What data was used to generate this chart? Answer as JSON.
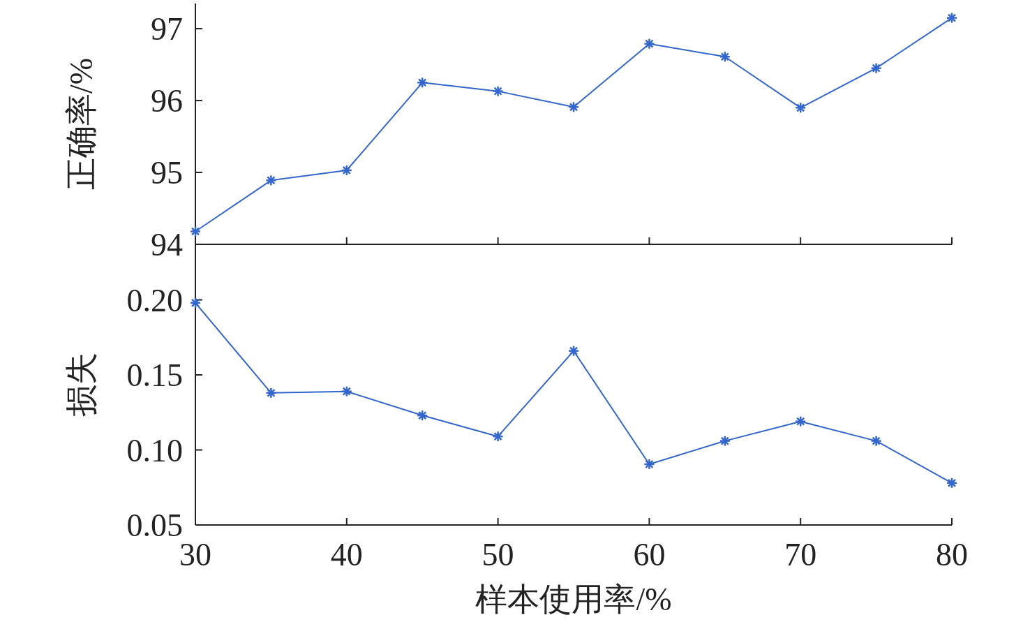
{
  "chart_data": [
    {
      "type": "line",
      "ylabel": "正确率/%",
      "x": [
        30,
        35,
        40,
        45,
        50,
        55,
        60,
        65,
        70,
        75,
        80
      ],
      "xlim": [
        30,
        80
      ],
      "xticks": [
        30,
        40,
        50,
        60,
        70,
        80
      ],
      "ylim": [
        94,
        97.35
      ],
      "yticks": [
        94,
        95,
        96,
        97
      ],
      "tick_labels": "y",
      "marker": "cross",
      "series": [
        {
          "color": "#3366cc",
          "values": [
            94.18,
            94.89,
            95.03,
            96.25,
            96.13,
            95.91,
            96.79,
            96.61,
            95.9,
            96.45,
            97.15
          ]
        }
      ]
    },
    {
      "type": "line",
      "ylabel": "损失",
      "xlabel": "样本使用率/%",
      "x": [
        30,
        35,
        40,
        45,
        50,
        55,
        60,
        65,
        70,
        75,
        80
      ],
      "xlim": [
        30,
        80
      ],
      "xticks": [
        30,
        40,
        50,
        60,
        70,
        80
      ],
      "ylim": [
        0.05,
        0.237
      ],
      "yticks": [
        {
          "value": 0.05,
          "label": "0.05"
        },
        {
          "value": 0.1,
          "label": "0.10"
        },
        {
          "value": 0.15,
          "label": "0.15"
        },
        {
          "value": 0.2,
          "label": "0.20"
        }
      ],
      "marker": "cross",
      "series": [
        {
          "color": "#3366cc",
          "values": [
            0.198,
            0.138,
            0.139,
            0.123,
            0.109,
            0.166,
            0.0905,
            0.106,
            0.119,
            0.106,
            0.078
          ]
        }
      ]
    }
  ]
}
